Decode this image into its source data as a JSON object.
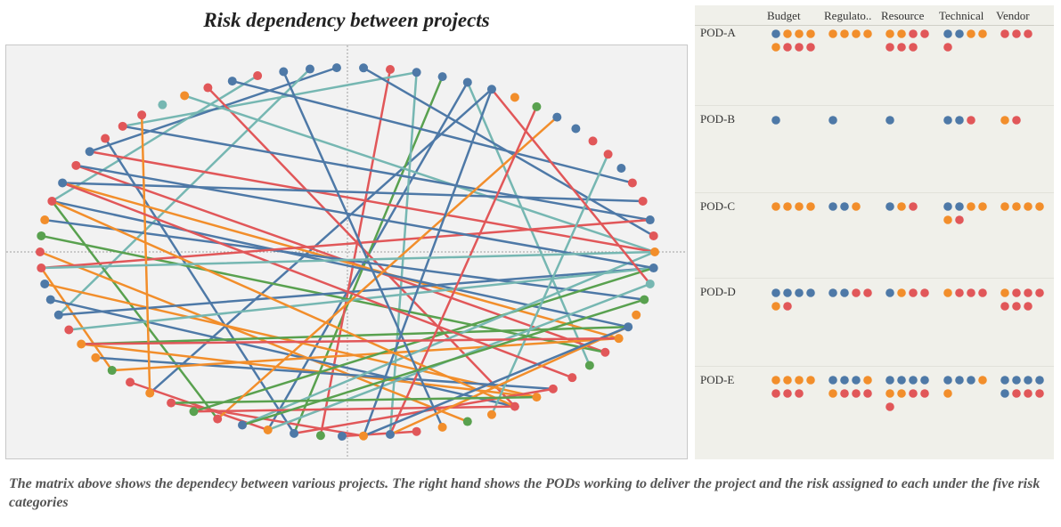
{
  "title": "Risk dependency between projects",
  "caption": "The matrix above shows the dependecy between various projects. The right hand shows the PODs working to deliver the project and the risk assigned to each under  the five risk categories",
  "colors": {
    "blue": "#4e79a7",
    "orange": "#f28e2b",
    "red": "#e15759",
    "green": "#59a14f",
    "teal": "#76b7b2"
  },
  "chart_data": [
    {
      "type": "network",
      "title": "Risk dependency between projects",
      "nodes": [
        {
          "id": 0,
          "angle": 0,
          "color": "orange"
        },
        {
          "id": 1,
          "angle": 5,
          "color": "blue"
        },
        {
          "id": 2,
          "angle": 10,
          "color": "teal"
        },
        {
          "id": 3,
          "angle": 15,
          "color": "green"
        },
        {
          "id": 4,
          "angle": 20,
          "color": "orange"
        },
        {
          "id": 5,
          "angle": 24,
          "color": "blue"
        },
        {
          "id": 6,
          "angle": 28,
          "color": "orange"
        },
        {
          "id": 7,
          "angle": 33,
          "color": "red"
        },
        {
          "id": 8,
          "angle": 38,
          "color": "green"
        },
        {
          "id": 9,
          "angle": 43,
          "color": "red"
        },
        {
          "id": 10,
          "angle": 48,
          "color": "red"
        },
        {
          "id": 11,
          "angle": 52,
          "color": "orange"
        },
        {
          "id": 12,
          "angle": 57,
          "color": "red"
        },
        {
          "id": 13,
          "angle": 62,
          "color": "orange"
        },
        {
          "id": 14,
          "angle": 67,
          "color": "green"
        },
        {
          "id": 15,
          "angle": 72,
          "color": "orange"
        },
        {
          "id": 16,
          "angle": 77,
          "color": "red"
        },
        {
          "id": 17,
          "angle": 82,
          "color": "blue"
        },
        {
          "id": 18,
          "angle": 87,
          "color": "orange"
        },
        {
          "id": 19,
          "angle": 91,
          "color": "blue"
        },
        {
          "id": 20,
          "angle": 95,
          "color": "green"
        },
        {
          "id": 21,
          "angle": 100,
          "color": "blue"
        },
        {
          "id": 22,
          "angle": 105,
          "color": "orange"
        },
        {
          "id": 23,
          "angle": 110,
          "color": "blue"
        },
        {
          "id": 24,
          "angle": 115,
          "color": "red"
        },
        {
          "id": 25,
          "angle": 120,
          "color": "green"
        },
        {
          "id": 26,
          "angle": 125,
          "color": "red"
        },
        {
          "id": 27,
          "angle": 130,
          "color": "orange"
        },
        {
          "id": 28,
          "angle": 135,
          "color": "red"
        },
        {
          "id": 29,
          "angle": 140,
          "color": "green"
        },
        {
          "id": 30,
          "angle": 145,
          "color": "orange"
        },
        {
          "id": 31,
          "angle": 150,
          "color": "orange"
        },
        {
          "id": 32,
          "angle": 155,
          "color": "red"
        },
        {
          "id": 33,
          "angle": 160,
          "color": "blue"
        },
        {
          "id": 34,
          "angle": 165,
          "color": "blue"
        },
        {
          "id": 35,
          "angle": 170,
          "color": "blue"
        },
        {
          "id": 36,
          "angle": 175,
          "color": "red"
        },
        {
          "id": 37,
          "angle": 180,
          "color": "red"
        },
        {
          "id": 38,
          "angle": 185,
          "color": "green"
        },
        {
          "id": 39,
          "angle": 190,
          "color": "orange"
        },
        {
          "id": 40,
          "angle": 196,
          "color": "red"
        },
        {
          "id": 41,
          "angle": 202,
          "color": "blue"
        },
        {
          "id": 42,
          "angle": 208,
          "color": "red"
        },
        {
          "id": 43,
          "angle": 213,
          "color": "blue"
        },
        {
          "id": 44,
          "angle": 218,
          "color": "red"
        },
        {
          "id": 45,
          "angle": 223,
          "color": "red"
        },
        {
          "id": 46,
          "angle": 228,
          "color": "red"
        },
        {
          "id": 47,
          "angle": 233,
          "color": "teal"
        },
        {
          "id": 48,
          "angle": 238,
          "color": "orange"
        },
        {
          "id": 49,
          "angle": 243,
          "color": "red"
        },
        {
          "id": 50,
          "angle": 248,
          "color": "blue"
        },
        {
          "id": 51,
          "angle": 253,
          "color": "red"
        },
        {
          "id": 52,
          "angle": 258,
          "color": "blue"
        },
        {
          "id": 53,
          "angle": 263,
          "color": "blue"
        },
        {
          "id": 54,
          "angle": 268,
          "color": "blue"
        },
        {
          "id": 55,
          "angle": 273,
          "color": "blue"
        },
        {
          "id": 56,
          "angle": 278,
          "color": "red"
        },
        {
          "id": 57,
          "angle": 283,
          "color": "blue"
        },
        {
          "id": 58,
          "angle": 288,
          "color": "blue"
        },
        {
          "id": 59,
          "angle": 293,
          "color": "blue"
        },
        {
          "id": 60,
          "angle": 298,
          "color": "blue"
        },
        {
          "id": 61,
          "angle": 303,
          "color": "orange"
        },
        {
          "id": 62,
          "angle": 308,
          "color": "green"
        },
        {
          "id": 63,
          "angle": 313,
          "color": "blue"
        },
        {
          "id": 64,
          "angle": 318,
          "color": "blue"
        },
        {
          "id": 65,
          "angle": 323,
          "color": "red"
        },
        {
          "id": 66,
          "angle": 328,
          "color": "red"
        },
        {
          "id": 67,
          "angle": 333,
          "color": "blue"
        },
        {
          "id": 68,
          "angle": 338,
          "color": "red"
        },
        {
          "id": 69,
          "angle": 344,
          "color": "red"
        },
        {
          "id": 70,
          "angle": 350,
          "color": "blue"
        },
        {
          "id": 71,
          "angle": 355,
          "color": "red"
        }
      ],
      "edges": [
        {
          "from": 59,
          "to": 8,
          "color": "teal"
        },
        {
          "from": 60,
          "to": 27,
          "color": "blue"
        },
        {
          "from": 59,
          "to": 22,
          "color": "blue"
        },
        {
          "from": 58,
          "to": 21,
          "color": "green"
        },
        {
          "from": 57,
          "to": 17,
          "color": "teal"
        },
        {
          "from": 56,
          "to": 20,
          "color": "red"
        },
        {
          "from": 57,
          "to": 45,
          "color": "teal"
        },
        {
          "from": 55,
          "to": 71,
          "color": "blue"
        },
        {
          "from": 54,
          "to": 43,
          "color": "blue"
        },
        {
          "from": 53,
          "to": 33,
          "color": "teal"
        },
        {
          "from": 51,
          "to": 40,
          "color": "teal"
        },
        {
          "from": 50,
          "to": 68,
          "color": "blue"
        },
        {
          "from": 49,
          "to": 12,
          "color": "red"
        },
        {
          "from": 48,
          "to": 0,
          "color": "teal"
        },
        {
          "from": 45,
          "to": 70,
          "color": "blue"
        },
        {
          "from": 44,
          "to": 21,
          "color": "blue"
        },
        {
          "from": 43,
          "to": 0,
          "color": "red"
        },
        {
          "from": 42,
          "to": 7,
          "color": "red"
        },
        {
          "from": 41,
          "to": 69,
          "color": "blue"
        },
        {
          "from": 41,
          "to": 6,
          "color": "orange"
        },
        {
          "from": 40,
          "to": 5,
          "color": "blue"
        },
        {
          "from": 40,
          "to": 24,
          "color": "green"
        },
        {
          "from": 39,
          "to": 3,
          "color": "blue"
        },
        {
          "from": 38,
          "to": 7,
          "color": "green"
        },
        {
          "from": 37,
          "to": 14,
          "color": "orange"
        },
        {
          "from": 36,
          "to": 70,
          "color": "red"
        },
        {
          "from": 36,
          "to": 29,
          "color": "orange"
        },
        {
          "from": 35,
          "to": 11,
          "color": "orange"
        },
        {
          "from": 34,
          "to": 12,
          "color": "blue"
        },
        {
          "from": 33,
          "to": 1,
          "color": "blue"
        },
        {
          "from": 32,
          "to": 1,
          "color": "teal"
        },
        {
          "from": 31,
          "to": 5,
          "color": "green"
        },
        {
          "from": 31,
          "to": 11,
          "color": "orange"
        },
        {
          "from": 30,
          "to": 10,
          "color": "blue"
        },
        {
          "from": 29,
          "to": 6,
          "color": "orange"
        },
        {
          "from": 28,
          "to": 22,
          "color": "red"
        },
        {
          "from": 27,
          "to": 46,
          "color": "orange"
        },
        {
          "from": 26,
          "to": 18,
          "color": "red"
        },
        {
          "from": 25,
          "to": 1,
          "color": "green"
        },
        {
          "from": 24,
          "to": 63,
          "color": "orange"
        },
        {
          "from": 23,
          "to": 0,
          "color": "teal"
        },
        {
          "from": 22,
          "to": 2,
          "color": "teal"
        },
        {
          "from": 21,
          "to": 10,
          "color": "red"
        },
        {
          "from": 17,
          "to": 62,
          "color": "red"
        },
        {
          "from": 18,
          "to": 60,
          "color": "blue"
        },
        {
          "from": 12,
          "to": 40,
          "color": "orange"
        },
        {
          "from": 13,
          "to": 66,
          "color": "teal"
        },
        {
          "from": 9,
          "to": 41,
          "color": "red"
        },
        {
          "from": 15,
          "to": 52,
          "color": "blue"
        },
        {
          "from": 16,
          "to": 19,
          "color": "red"
        },
        {
          "from": 12,
          "to": 25,
          "color": "red"
        },
        {
          "from": 5,
          "to": 17,
          "color": "orange"
        },
        {
          "from": 5,
          "to": 18,
          "color": "blue"
        },
        {
          "from": 6,
          "to": 31,
          "color": "red"
        },
        {
          "from": 1,
          "to": 42,
          "color": "blue"
        },
        {
          "from": 0,
          "to": 36,
          "color": "teal"
        },
        {
          "from": 11,
          "to": 26,
          "color": "green"
        },
        {
          "from": 23,
          "to": 3,
          "color": "green"
        },
        {
          "from": 2,
          "to": 60,
          "color": "red"
        }
      ]
    },
    {
      "type": "dot-matrix",
      "columns": [
        "Budget",
        "Regulato..",
        "Resource",
        "Technical",
        "Vendor"
      ],
      "rows": [
        {
          "label": "POD-A",
          "cells": [
            [
              "blue",
              "orange",
              "orange",
              "orange",
              "orange",
              "red",
              "red",
              "red"
            ],
            [
              "orange",
              "orange",
              "orange",
              "orange"
            ],
            [
              "orange",
              "orange",
              "red",
              "red",
              "red",
              "red",
              "red"
            ],
            [
              "blue",
              "blue",
              "orange",
              "orange",
              "red"
            ],
            [
              "red",
              "red",
              "red"
            ]
          ]
        },
        {
          "label": "POD-B",
          "cells": [
            [
              "blue"
            ],
            [
              "blue"
            ],
            [
              "blue"
            ],
            [
              "blue",
              "blue",
              "red"
            ],
            [
              "orange",
              "red"
            ]
          ]
        },
        {
          "label": "POD-C",
          "cells": [
            [
              "orange",
              "orange",
              "orange",
              "orange"
            ],
            [
              "blue",
              "blue",
              "orange"
            ],
            [
              "blue",
              "orange",
              "red"
            ],
            [
              "blue",
              "blue",
              "orange",
              "orange",
              "orange",
              "red"
            ],
            [
              "orange",
              "orange",
              "orange",
              "orange"
            ]
          ]
        },
        {
          "label": "POD-D",
          "cells": [
            [
              "blue",
              "blue",
              "blue",
              "blue",
              "orange",
              "red"
            ],
            [
              "blue",
              "blue",
              "red",
              "red"
            ],
            [
              "blue",
              "orange",
              "red",
              "red"
            ],
            [
              "orange",
              "red",
              "red",
              "red"
            ],
            [
              "orange",
              "red",
              "red",
              "red",
              "red",
              "red",
              "red"
            ]
          ]
        },
        {
          "label": "POD-E",
          "cells": [
            [
              "orange",
              "orange",
              "orange",
              "orange",
              "red",
              "red",
              "red"
            ],
            [
              "blue",
              "blue",
              "blue",
              "orange",
              "orange",
              "red",
              "red",
              "red"
            ],
            [
              "blue",
              "blue",
              "blue",
              "blue",
              "orange",
              "orange",
              "red",
              "red",
              "red"
            ],
            [
              "blue",
              "blue",
              "blue",
              "orange",
              "orange"
            ],
            [
              "blue",
              "blue",
              "blue",
              "blue",
              "blue",
              "red",
              "red",
              "red"
            ]
          ]
        }
      ]
    }
  ]
}
